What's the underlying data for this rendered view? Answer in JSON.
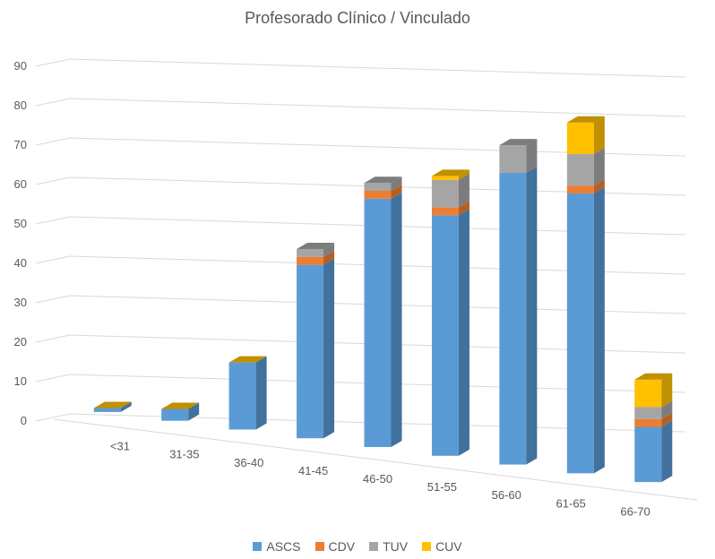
{
  "chart_data": {
    "type": "bar",
    "stacked": true,
    "three_d": true,
    "title": "Profesorado Clínico / Vinculado",
    "xlabel": "",
    "ylabel": "",
    "ylim": [
      0,
      90
    ],
    "yticks": [
      0,
      10,
      20,
      30,
      40,
      50,
      60,
      70,
      80,
      90
    ],
    "grid": true,
    "legend_position": "bottom",
    "categories": [
      "<31",
      "31-35",
      "36-40",
      "41-45",
      "46-50",
      "51-55",
      "56-60",
      "61-65",
      "66-70"
    ],
    "series": [
      {
        "name": "ASCS",
        "color": "#5B9BD5",
        "side": "#41719C",
        "values": [
          1,
          3,
          17,
          44,
          63,
          61,
          74,
          71,
          14
        ]
      },
      {
        "name": "CDV",
        "color": "#ED7D31",
        "side": "#B65F25",
        "values": [
          0,
          0,
          0,
          2,
          2,
          2,
          0,
          2,
          2
        ]
      },
      {
        "name": "TUV",
        "color": "#A5A5A5",
        "side": "#7C7C7C",
        "values": [
          0,
          0,
          0,
          2,
          2,
          7,
          7,
          8,
          3
        ]
      },
      {
        "name": "CUV",
        "color": "#FFC000",
        "side": "#BF9000",
        "values": [
          0,
          0,
          0,
          0,
          0,
          1,
          0,
          8,
          7
        ]
      }
    ]
  }
}
